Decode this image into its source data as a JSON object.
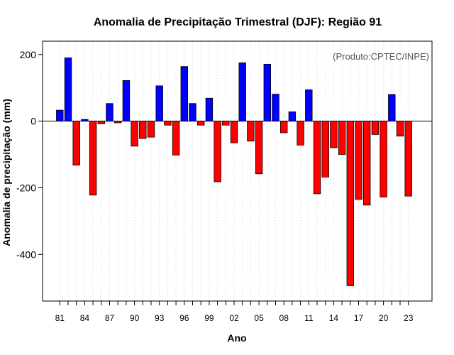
{
  "chart_data": {
    "type": "bar",
    "title": "Anomalia de Precipitação Trimestral (DJF): Região 91",
    "xlabel": "Ano",
    "ylabel": "Anomalia de precipitação (mm)",
    "annotation": "(Produto:CPTEC/INPE)",
    "ylim": [
      -540,
      240
    ],
    "yticks": [
      200,
      0,
      -200,
      -400
    ],
    "ytick_labels": [
      "200",
      "0",
      "-200",
      "-400"
    ],
    "xtick_labels": [
      "81",
      "84",
      "87",
      "90",
      "93",
      "96",
      "99",
      "02",
      "05",
      "08",
      "11",
      "14",
      "17",
      "20",
      "23"
    ],
    "xtick_years": [
      1981,
      1984,
      1987,
      1990,
      1993,
      1996,
      1999,
      2002,
      2005,
      2008,
      2011,
      2014,
      2017,
      2020,
      2023
    ],
    "grid": true,
    "positive_color": "#0000ff",
    "negative_color": "#ff0000",
    "years": [
      1981,
      1982,
      1983,
      1984,
      1985,
      1986,
      1987,
      1988,
      1989,
      1990,
      1991,
      1992,
      1993,
      1994,
      1995,
      1996,
      1997,
      1998,
      1999,
      2000,
      2001,
      2002,
      2003,
      2004,
      2005,
      2006,
      2007,
      2008,
      2009,
      2010,
      2011,
      2012,
      2013,
      2014,
      2015,
      2016,
      2017,
      2018,
      2019,
      2020,
      2021,
      2022,
      2023
    ],
    "values": [
      33,
      190,
      -132,
      5,
      -222,
      -8,
      53,
      -5,
      122,
      -75,
      -52,
      -48,
      106,
      -12,
      -102,
      164,
      53,
      -12,
      69,
      -182,
      -12,
      -65,
      175,
      -60,
      -158,
      171,
      81,
      -35,
      28,
      -72,
      94,
      -218,
      -168,
      -80,
      -100,
      -494,
      -235,
      -252,
      -40,
      -228,
      80,
      -45,
      -225
    ]
  }
}
